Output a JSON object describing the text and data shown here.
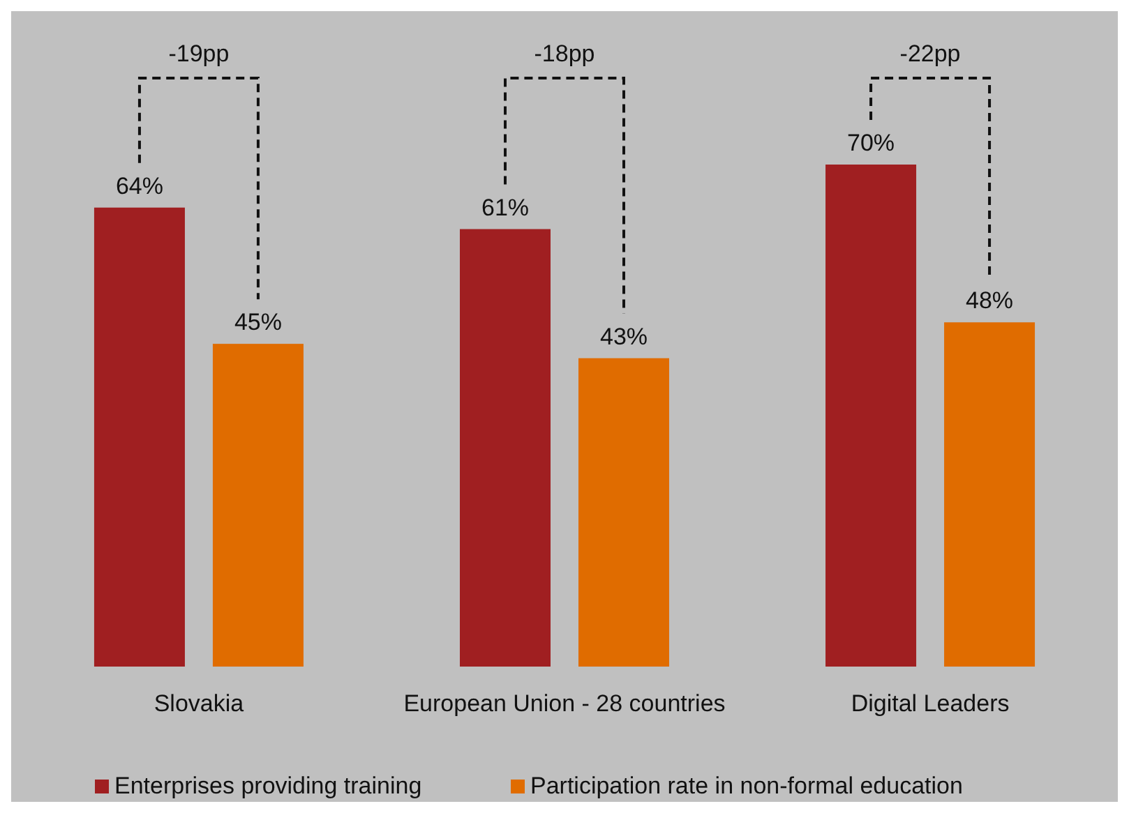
{
  "chart_data": {
    "type": "bar",
    "categories": [
      "Slovakia",
      "European Union - 28 countries",
      "Digital Leaders"
    ],
    "series": [
      {
        "name": "Enterprises providing training",
        "color": "#a01f21",
        "values": [
          64,
          61,
          70
        ],
        "value_labels": [
          "64%",
          "61%",
          "70%"
        ]
      },
      {
        "name": "Participation rate in non-formal education",
        "color": "#e06c00",
        "values": [
          45,
          43,
          48
        ],
        "value_labels": [
          "45%",
          "43%",
          "48%"
        ]
      }
    ],
    "legend": "bottom",
    "grid": false,
    "annotations": [
      "-19pp",
      "-18pp",
      "-22pp"
    ]
  }
}
